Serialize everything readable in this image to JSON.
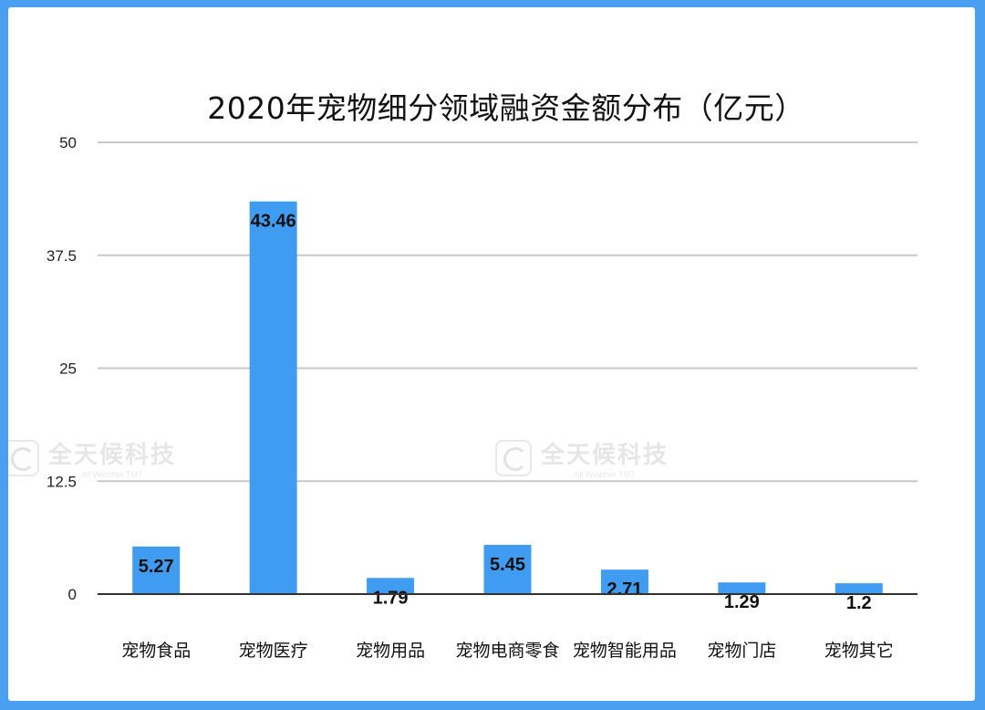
{
  "chart_data": {
    "type": "bar",
    "title": "2020年宠物细分领域融资金额分布（亿元）",
    "categories": [
      "宠物食品",
      "宠物医疗",
      "宠物用品",
      "宠物电商零食",
      "宠物智能用品",
      "宠物门店",
      "宠物其它"
    ],
    "values": [
      5.27,
      43.46,
      1.79,
      5.45,
      2.71,
      1.29,
      1.2
    ],
    "value_labels": [
      "5.27",
      "43.46",
      "1.79",
      "5.45",
      "2.71",
      "1.29",
      "1.2"
    ],
    "yticks": [
      "0",
      "12.5",
      "25",
      "37.5",
      "50"
    ],
    "ylim": [
      0,
      50
    ],
    "grid": true,
    "colors": {
      "bar": "#3f9cf0",
      "frame": "#4a9ff2",
      "grid": "#c8c8c8",
      "axis": "#333333"
    }
  },
  "watermark": {
    "text": "全天候科技",
    "sub": "All Weather TMT"
  }
}
